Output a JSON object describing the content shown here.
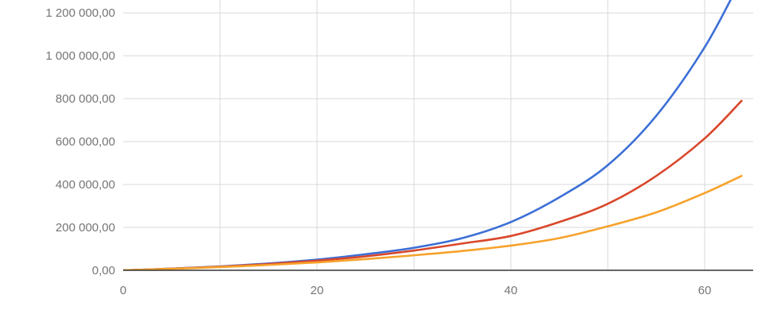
{
  "chart_data": {
    "type": "line",
    "title": "",
    "xlabel": "",
    "ylabel": "",
    "xlim": [
      0,
      65
    ],
    "ylim": [
      0,
      1260000
    ],
    "x_ticks": [
      0,
      20,
      40,
      60
    ],
    "x_tick_labels": [
      "0",
      "20",
      "40",
      "60"
    ],
    "y_ticks": [
      0,
      200000,
      400000,
      600000,
      800000,
      1000000,
      1200000
    ],
    "y_tick_labels": [
      "0,00",
      "200 000,00",
      "400 000,00",
      "600 000,00",
      "800 000,00",
      "1 000 000,00",
      "1 200 000,00"
    ],
    "x_gridlines": [
      10,
      20,
      30,
      40,
      50,
      60
    ],
    "grid": true,
    "legend": "none",
    "x": [
      0,
      5,
      10,
      15,
      20,
      25,
      30,
      35,
      40,
      45,
      50,
      55,
      60,
      63.8
    ],
    "series": [
      {
        "color": "#3c6fd6",
        "values": [
          0,
          8000,
          18000,
          32000,
          50000,
          75000,
          105000,
          150000,
          225000,
          340000,
          490000,
          720000,
          1040000,
          1360000
        ]
      },
      {
        "color": "#d9472b",
        "values": [
          0,
          7500,
          17000,
          29000,
          45000,
          65000,
          92000,
          125000,
          160000,
          225000,
          310000,
          440000,
          615000,
          790000
        ]
      },
      {
        "color": "#f6a22b",
        "values": [
          0,
          7000,
          15000,
          25000,
          37000,
          52000,
          70000,
          90000,
          115000,
          150000,
          205000,
          270000,
          360000,
          440000
        ]
      }
    ]
  }
}
